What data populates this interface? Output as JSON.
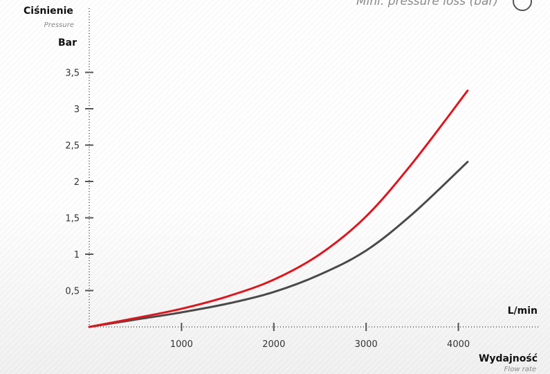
{
  "header": {
    "subtitle": "Mini. pressure loss (bar)",
    "badge_icon": "circle-badge"
  },
  "chart_data": {
    "type": "line",
    "ylabel": "Ciśnienie",
    "ylabel_sub": "Pressure",
    "y_unit": "Bar",
    "xlabel": "Wydajność",
    "xlabel_sub": "Flow rate",
    "x_unit": "L/min",
    "xlim": [
      0,
      4200
    ],
    "ylim": [
      0,
      3.9
    ],
    "x_ticks": [
      1000,
      2000,
      3000,
      4000
    ],
    "x_tick_labels": [
      "1000",
      "2000",
      "3000",
      "4000"
    ],
    "y_ticks": [
      0.5,
      1,
      1.5,
      2,
      2.5,
      3,
      3.5
    ],
    "y_tick_labels": [
      "0,5",
      "1",
      "1,5",
      "2",
      "2,5",
      "3",
      "3,5"
    ],
    "grid": false,
    "series": [
      {
        "color": "#e0141c",
        "x": [
          0,
          500,
          1000,
          1500,
          2000,
          2500,
          3000,
          3500,
          4100
        ],
        "y": [
          0.0,
          0.12,
          0.25,
          0.42,
          0.65,
          1.0,
          1.52,
          2.25,
          3.25
        ]
      },
      {
        "color": "#4a4a4a",
        "x": [
          0,
          500,
          1000,
          1500,
          2000,
          2500,
          3000,
          3500,
          4100
        ],
        "y": [
          0.0,
          0.1,
          0.2,
          0.32,
          0.48,
          0.72,
          1.05,
          1.55,
          2.27
        ]
      }
    ]
  }
}
